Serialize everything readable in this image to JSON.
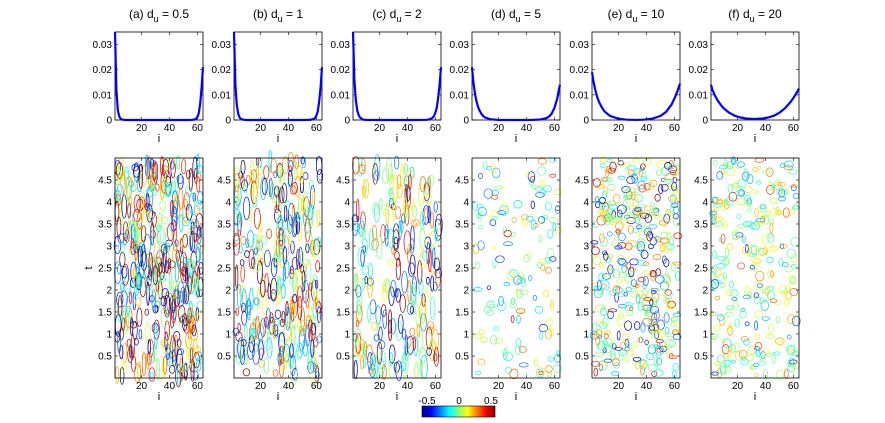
{
  "figure": {
    "bottom_ylabel": "t",
    "xlabel": "i",
    "colorbar": {
      "ticks": [
        "-0.5",
        "0",
        "0.5"
      ],
      "range": [
        -0.5,
        0.5
      ],
      "colormap": "jet"
    }
  },
  "chart_data": [
    {
      "type": "line",
      "panel": "a-top",
      "title": "(a)  d_u = 0.5",
      "xlim": [
        1,
        64
      ],
      "ylim": [
        0,
        0.035
      ],
      "xticks": [
        20,
        40,
        60
      ],
      "yticks": [
        0,
        0.01,
        0.02,
        0.03
      ],
      "xlabel": "i",
      "line_color": "#0000ff",
      "x": [
        1,
        2,
        3,
        4,
        5,
        6,
        8,
        10,
        20,
        32,
        44,
        54,
        56,
        58,
        59,
        60,
        61,
        62,
        63,
        64
      ],
      "y": [
        0.035,
        0.012,
        0.004,
        0.0015,
        0.0005,
        0.0002,
        3e-05,
        0,
        0,
        0,
        0,
        0,
        5e-05,
        0.0002,
        0.0005,
        0.0012,
        0.0028,
        0.0065,
        0.013,
        0.021
      ]
    },
    {
      "type": "line",
      "panel": "b-top",
      "title": "(b)  d_u = 1",
      "xlim": [
        1,
        64
      ],
      "ylim": [
        0,
        0.035
      ],
      "xticks": [
        20,
        40,
        60
      ],
      "yticks": [
        0,
        0.01,
        0.02,
        0.03
      ],
      "xlabel": "i",
      "line_color": "#0000ff",
      "x": [
        1,
        2,
        3,
        4,
        5,
        6,
        8,
        10,
        20,
        32,
        44,
        54,
        56,
        58,
        59,
        60,
        61,
        62,
        63,
        64
      ],
      "y": [
        0.035,
        0.014,
        0.006,
        0.0025,
        0.001,
        0.0004,
        8e-05,
        0,
        0,
        0,
        0,
        3e-05,
        0.0001,
        0.0004,
        0.0008,
        0.0018,
        0.0035,
        0.0075,
        0.013,
        0.021
      ]
    },
    {
      "type": "line",
      "panel": "c-top",
      "title": "(c)  d_u = 2",
      "xlim": [
        1,
        64
      ],
      "ylim": [
        0,
        0.035
      ],
      "xticks": [
        20,
        40,
        60
      ],
      "yticks": [
        0,
        0.01,
        0.02,
        0.03
      ],
      "xlabel": "i",
      "line_color": "#0000ff",
      "x": [
        1,
        2,
        3,
        4,
        5,
        6,
        8,
        10,
        20,
        32,
        44,
        54,
        56,
        58,
        59,
        60,
        61,
        62,
        63,
        64
      ],
      "y": [
        0.035,
        0.016,
        0.008,
        0.004,
        0.002,
        0.001,
        0.0002,
        5e-05,
        0,
        0,
        0,
        8e-05,
        0.0003,
        0.0009,
        0.0016,
        0.003,
        0.005,
        0.009,
        0.014,
        0.021
      ]
    },
    {
      "type": "line",
      "panel": "d-top",
      "title": "(d)  d_u = 5",
      "xlim": [
        1,
        64
      ],
      "ylim": [
        0,
        0.035
      ],
      "xticks": [
        20,
        40,
        60
      ],
      "yticks": [
        0,
        0.01,
        0.02,
        0.03
      ],
      "xlabel": "i",
      "line_color": "#0000ff",
      "x": [
        1,
        2,
        3,
        4,
        5,
        6,
        8,
        10,
        14,
        20,
        32,
        44,
        50,
        54,
        56,
        58,
        60,
        62,
        63,
        64
      ],
      "y": [
        0.021,
        0.015,
        0.011,
        0.008,
        0.0058,
        0.0042,
        0.0022,
        0.0011,
        0.0003,
        3e-05,
        0,
        3e-05,
        0.0002,
        0.0007,
        0.0013,
        0.0025,
        0.0048,
        0.0085,
        0.0115,
        0.014
      ]
    },
    {
      "type": "line",
      "panel": "e-top",
      "title": "(e)  d_u = 10",
      "xlim": [
        1,
        64
      ],
      "ylim": [
        0,
        0.035
      ],
      "xticks": [
        20,
        40,
        60
      ],
      "yticks": [
        0,
        0.01,
        0.02,
        0.03
      ],
      "xlabel": "i",
      "line_color": "#0000ff",
      "x": [
        1,
        2,
        3,
        4,
        5,
        6,
        8,
        10,
        14,
        20,
        26,
        32,
        38,
        44,
        50,
        54,
        58,
        60,
        62,
        64
      ],
      "y": [
        0.019,
        0.0155,
        0.0128,
        0.0105,
        0.0087,
        0.0072,
        0.005,
        0.0034,
        0.0016,
        0.0005,
        0.00012,
        3e-05,
        0.00012,
        0.0005,
        0.0016,
        0.0032,
        0.0062,
        0.0085,
        0.0112,
        0.0145
      ]
    },
    {
      "type": "line",
      "panel": "f-top",
      "title": "(f)  d_u = 20",
      "xlim": [
        1,
        64
      ],
      "ylim": [
        0,
        0.035
      ],
      "xticks": [
        20,
        40,
        60
      ],
      "yticks": [
        0,
        0.01,
        0.02,
        0.03
      ],
      "xlabel": "i",
      "line_color": "#0000ff",
      "x": [
        1,
        2,
        4,
        6,
        8,
        10,
        14,
        18,
        22,
        26,
        32,
        38,
        42,
        46,
        50,
        54,
        58,
        60,
        62,
        64
      ],
      "y": [
        0.014,
        0.012,
        0.0095,
        0.0076,
        0.006,
        0.0047,
        0.0029,
        0.0017,
        0.001,
        0.0006,
        0.0004,
        0.0006,
        0.001,
        0.0017,
        0.0029,
        0.0047,
        0.0072,
        0.0088,
        0.0105,
        0.0125
      ]
    },
    {
      "type": "heatmap",
      "panel": "a-bottom",
      "xlim": [
        1,
        64
      ],
      "ylim": [
        0,
        5
      ],
      "xticks": [
        20,
        40,
        60
      ],
      "yticks": [
        0.5,
        1,
        1.5,
        2,
        2.5,
        3,
        3.5,
        4,
        4.5
      ],
      "xlabel": "i",
      "ylabel": "t",
      "amplitude": 0.5,
      "contrast": "very high",
      "stretch": "vertical streaks",
      "fill_density": 0.92,
      "seed": 11
    },
    {
      "type": "heatmap",
      "panel": "b-bottom",
      "xlim": [
        1,
        64
      ],
      "ylim": [
        0,
        5
      ],
      "xticks": [
        20,
        40,
        60
      ],
      "yticks": [
        0.5,
        1,
        1.5,
        2,
        2.5,
        3,
        3.5,
        4,
        4.5
      ],
      "xlabel": "i",
      "amplitude": 0.45,
      "contrast": "high",
      "stretch": "vertical streaks",
      "fill_density": 0.68,
      "seed": 23
    },
    {
      "type": "heatmap",
      "panel": "c-bottom",
      "xlim": [
        1,
        64
      ],
      "ylim": [
        0,
        5
      ],
      "xticks": [
        20,
        40,
        60
      ],
      "yticks": [
        0.5,
        1,
        1.5,
        2,
        2.5,
        3,
        3.5,
        4,
        4.5
      ],
      "xlabel": "i",
      "amplitude": 0.38,
      "contrast": "medium",
      "stretch": "vertical streaks",
      "fill_density": 0.45,
      "seed": 37
    },
    {
      "type": "heatmap",
      "panel": "d-bottom",
      "xlim": [
        1,
        64
      ],
      "ylim": [
        0,
        5
      ],
      "xticks": [
        20,
        40,
        60
      ],
      "yticks": [
        0.5,
        1,
        1.5,
        2,
        2.5,
        3,
        3.5,
        4,
        4.5
      ],
      "xlabel": "i",
      "amplitude": 0.25,
      "contrast": "low",
      "stretch": "isotropic",
      "fill_density": 0.3,
      "seed": 41
    },
    {
      "type": "heatmap",
      "panel": "e-bottom",
      "xlim": [
        1,
        64
      ],
      "ylim": [
        0,
        5
      ],
      "xticks": [
        20,
        40,
        60
      ],
      "yticks": [
        0.5,
        1,
        1.5,
        2,
        2.5,
        3,
        3.5,
        4,
        4.5
      ],
      "xlabel": "i",
      "amplitude": 0.32,
      "contrast": "medium",
      "stretch": "isotropic",
      "fill_density": 0.9,
      "seed": 53
    },
    {
      "type": "heatmap",
      "panel": "f-bottom",
      "xlim": [
        1,
        64
      ],
      "ylim": [
        0,
        5
      ],
      "xticks": [
        20,
        40,
        60
      ],
      "yticks": [
        0.5,
        1,
        1.5,
        2,
        2.5,
        3,
        3.5,
        4,
        4.5
      ],
      "xlabel": "i",
      "amplitude": 0.2,
      "contrast": "low",
      "stretch": "isotropic",
      "fill_density": 0.55,
      "seed": 67
    }
  ]
}
